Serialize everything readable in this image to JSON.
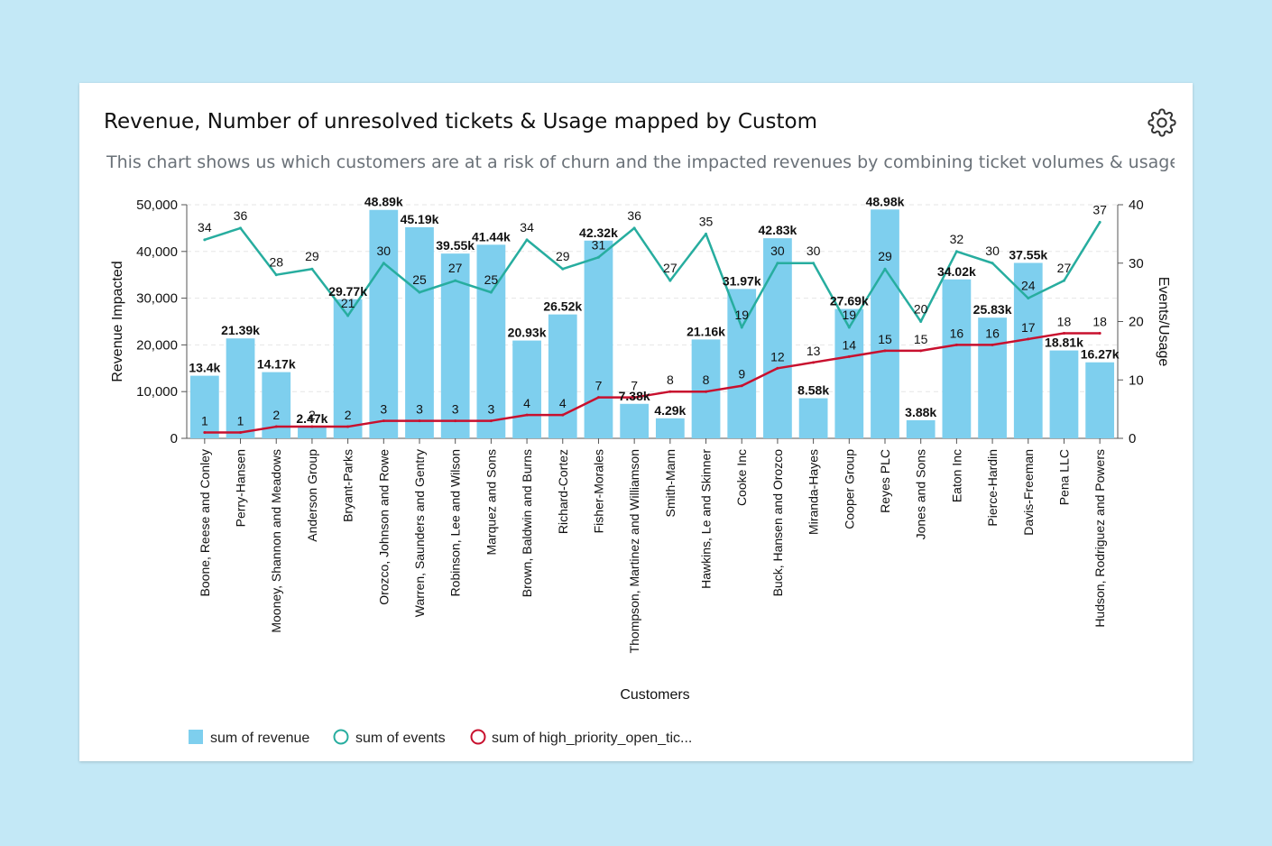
{
  "card": {
    "title": "Revenue, Number of unresolved tickets & Usage mapped by Customer",
    "subtitle": "This chart shows us which customers are at a risk of churn and the impacted revenues by combining ticket volumes & usage data",
    "settings_icon": "gear-icon"
  },
  "colors": {
    "bar": "#7ecfee",
    "events_line": "#27ad9f",
    "tickets_line": "#c8102e",
    "axis": "#111111",
    "grid": "#e6e6e6"
  },
  "chart_data": {
    "type": "bar",
    "xlabel": "Customers",
    "ylabel": "Revenue Impacted",
    "y2label": "Events/Usage",
    "ylim": [
      0,
      50000
    ],
    "y2lim": [
      0,
      40
    ],
    "yticks": [
      "0",
      "10,000",
      "20,000",
      "30,000",
      "40,000",
      "50,000"
    ],
    "y2ticks": [
      "0",
      "10",
      "20",
      "30",
      "40"
    ],
    "grid": true,
    "legend_position": "bottom-left",
    "categories": [
      "Boone, Reese and Conley",
      "Perry-Hansen",
      "Mooney, Shannon and Meadows",
      "Anderson Group",
      "Bryant-Parks",
      "Orozco, Johnson and Rowe",
      "Warren, Saunders and Gentry",
      "Robinson, Lee and Wilson",
      "Marquez and Sons",
      "Brown, Baldwin and Burns",
      "Richard-Cortez",
      "Fisher-Morales",
      "Thompson, Martinez and Williamson",
      "Smith-Mann",
      "Hawkins, Le and Skinner",
      "Cooke Inc",
      "Buck, Hansen and Orozco",
      "Miranda-Hayes",
      "Cooper Group",
      "Reyes PLC",
      "Jones and Sons",
      "Eaton Inc",
      "Pierce-Hardin",
      "Davis-Freeman",
      "Pena LLC",
      "Hudson, Rodriguez and Powers"
    ],
    "series": [
      {
        "name": "sum of revenue",
        "type": "bar",
        "axis": "left",
        "values": [
          13400,
          21390,
          14170,
          2470,
          29770,
          48890,
          45190,
          39550,
          41440,
          20930,
          26520,
          42320,
          7380,
          4290,
          21160,
          31970,
          42830,
          8580,
          27690,
          48980,
          3880,
          34020,
          25830,
          37550,
          18810,
          16270
        ],
        "labels": [
          "13.4k",
          "21.39k",
          "14.17k",
          "2.47k",
          "29.77k",
          "48.89k",
          "45.19k",
          "39.55k",
          "41.44k",
          "20.93k",
          "26.52k",
          "42.32k",
          "7.38k",
          "4.29k",
          "21.16k",
          "31.97k",
          "42.83k",
          "8.58k",
          "27.69k",
          "48.98k",
          "3.88k",
          "34.02k",
          "25.83k",
          "37.55k",
          "18.81k",
          "16.27k"
        ]
      },
      {
        "name": "sum of events",
        "type": "line",
        "axis": "right",
        "values": [
          34,
          36,
          28,
          29,
          21,
          30,
          25,
          27,
          25,
          34,
          29,
          31,
          36,
          27,
          35,
          19,
          30,
          30,
          19,
          29,
          20,
          32,
          30,
          24,
          27,
          37
        ]
      },
      {
        "name": "sum of high_priority_open_tic...",
        "type": "line",
        "axis": "right",
        "values": [
          1,
          1,
          2,
          2,
          2,
          3,
          3,
          3,
          3,
          4,
          4,
          7,
          7,
          8,
          8,
          9,
          12,
          13,
          14,
          15,
          15,
          16,
          16,
          17,
          18,
          18
        ]
      }
    ]
  }
}
